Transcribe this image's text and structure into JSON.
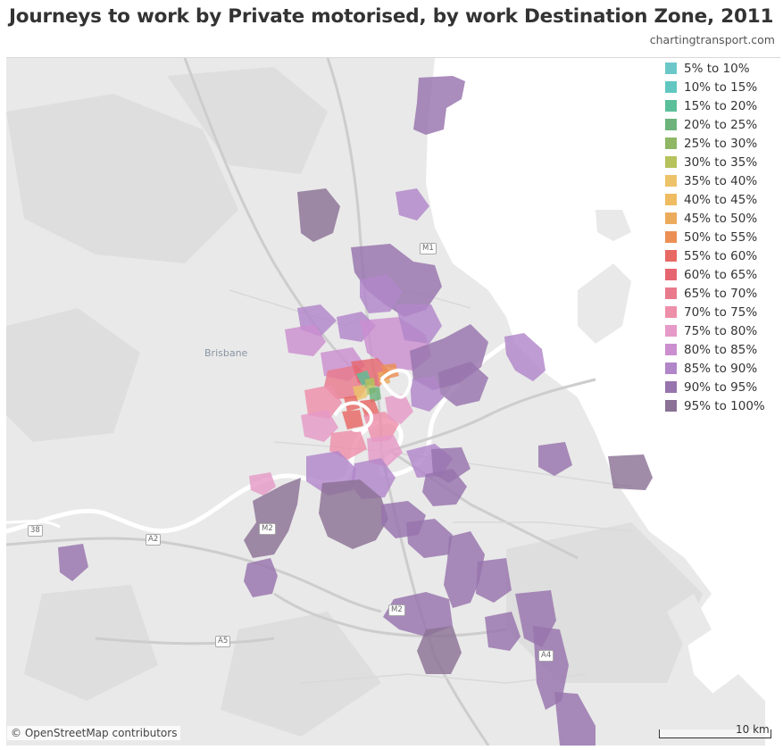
{
  "title": "Journeys to work by Private motorised, by work Destination Zone, 2011",
  "subtitle": "chartingtransport.com",
  "map": {
    "place_label": "Brisbane",
    "road_shields": [
      "M1",
      "M2",
      "M2",
      "A2",
      "A5",
      "38",
      "A4"
    ],
    "attribution": "© OpenStreetMap contributors",
    "scale_label": "10 km",
    "colors": {
      "land": "#e9e9e9",
      "water": "#ffffff",
      "parks": "#dadada",
      "roads": "#c8c8c8"
    }
  },
  "legend": {
    "items": [
      {
        "label": "5% to 10%",
        "color": "#6cc8c8"
      },
      {
        "label": "10% to 15%",
        "color": "#62c7c2"
      },
      {
        "label": "15% to 20%",
        "color": "#5bbf99"
      },
      {
        "label": "20% to 25%",
        "color": "#6db37b"
      },
      {
        "label": "25% to 30%",
        "color": "#8fb766"
      },
      {
        "label": "30% to 35%",
        "color": "#b6c25c"
      },
      {
        "label": "35% to 40%",
        "color": "#edc369"
      },
      {
        "label": "40% to 45%",
        "color": "#efbc61"
      },
      {
        "label": "45% to 50%",
        "color": "#ebab5c"
      },
      {
        "label": "50% to 55%",
        "color": "#ec8f55"
      },
      {
        "label": "55% to 60%",
        "color": "#e86864"
      },
      {
        "label": "60% to 65%",
        "color": "#e56670"
      },
      {
        "label": "65% to 70%",
        "color": "#e87a8c"
      },
      {
        "label": "70% to 75%",
        "color": "#ee8fa9"
      },
      {
        "label": "75% to 80%",
        "color": "#e59ac7"
      },
      {
        "label": "80% to 85%",
        "color": "#cb8fcf"
      },
      {
        "label": "85% to 90%",
        "color": "#b186c9"
      },
      {
        "label": "90% to 95%",
        "color": "#9774ad"
      },
      {
        "label": "95% to 100%",
        "color": "#8b7195"
      }
    ]
  }
}
